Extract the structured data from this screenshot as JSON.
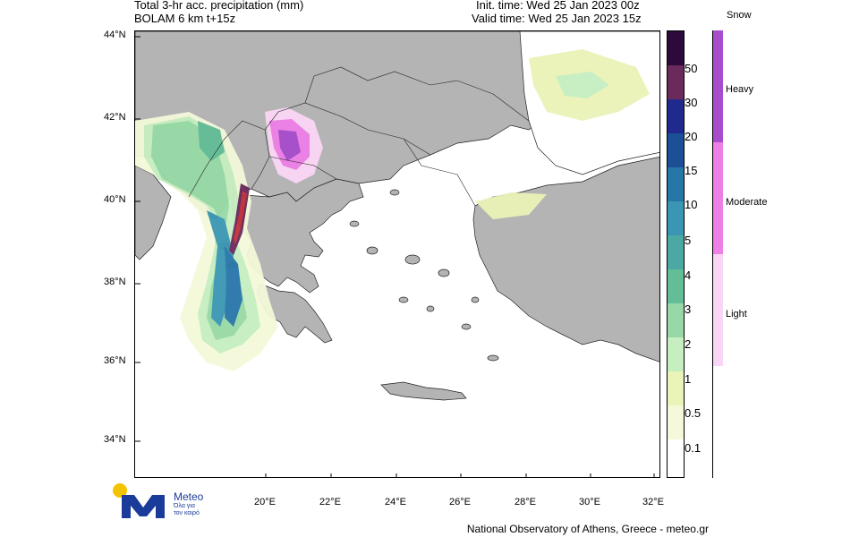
{
  "header": {
    "title_line1": "Total 3-hr acc. precipitation (mm)",
    "title_line2": "BOLAM 6 km t+15z",
    "init_time": "Init. time: Wed 25 Jan 2023 00z",
    "valid_time": "Valid time: Wed 25 Jan 2023 15z"
  },
  "map": {
    "lat_labels": [
      "44°N",
      "42°N",
      "40°N",
      "38°N",
      "36°N",
      "34°N"
    ],
    "lon_labels": [
      "20°E",
      "22°E",
      "24°E",
      "26°E",
      "28°E",
      "30°E",
      "32°E"
    ],
    "land_color": "#b4b4b4",
    "sea_color": "#ffffff"
  },
  "precip_legend": {
    "levels": [
      "50",
      "30",
      "20",
      "15",
      "10",
      "5",
      "4",
      "3",
      "2",
      "1",
      "0.5",
      "0.1"
    ],
    "colors": [
      "#2d0a3c",
      "#6b2a5c",
      "#1f2a8c",
      "#1d4f96",
      "#2676a8",
      "#3a96b2",
      "#4aa9a2",
      "#63bd97",
      "#97d9a6",
      "#c6eec0",
      "#eaf3b8",
      "#f5f9da",
      "#ffffff"
    ]
  },
  "snow_legend": {
    "title": "Snow",
    "labels": [
      "Heavy",
      "Moderate",
      "Light"
    ],
    "colors": [
      "#a64ccc",
      "#ee7fe7",
      "#fad6f6"
    ]
  },
  "footer": {
    "credit": "National Observatory of Athens, Greece - meteo.gr"
  },
  "logo": {
    "name": "Meteo",
    "tagline_1": "Όλα για",
    "tagline_2": "τον καιρό",
    "sun_color": "#f4c300",
    "brand_color": "#1b3b9a"
  }
}
